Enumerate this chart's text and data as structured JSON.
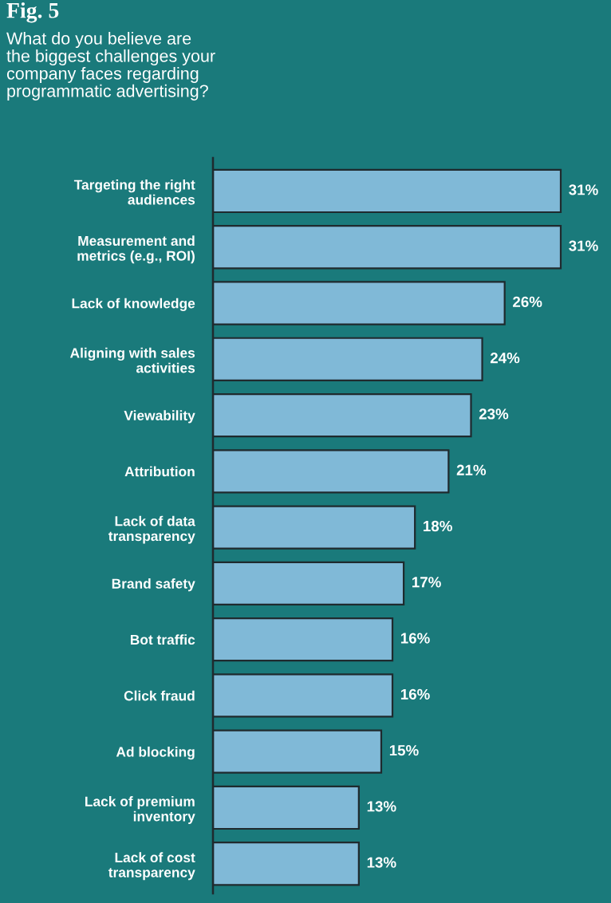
{
  "chart_data": {
    "type": "bar",
    "orientation": "horizontal",
    "title": "Fig. 5",
    "subtitle": "What do you believe are\nthe biggest challenges your\ncompany faces regarding\nprogrammatic advertising?",
    "categories": [
      "Targeting the right\naudiences",
      "Measurement and\nmetrics (e.g., ROI)",
      "Lack of knowledge",
      "Aligning with sales\nactivities",
      "Viewability",
      "Attribution",
      "Lack of data\ntransparency",
      "Brand safety",
      "Bot traffic",
      "Click fraud",
      "Ad blocking",
      "Lack of premium\ninventory",
      "Lack of cost\ntransparency"
    ],
    "values": [
      31,
      31,
      26,
      24,
      23,
      21,
      18,
      17,
      16,
      16,
      15,
      13,
      13
    ],
    "value_labels": [
      "31%",
      "31%",
      "26%",
      "24%",
      "23%",
      "21%",
      "18%",
      "17%",
      "16%",
      "16%",
      "15%",
      "13%",
      "13%"
    ],
    "color": "#80b9d7",
    "tick_labels": "y"
  }
}
